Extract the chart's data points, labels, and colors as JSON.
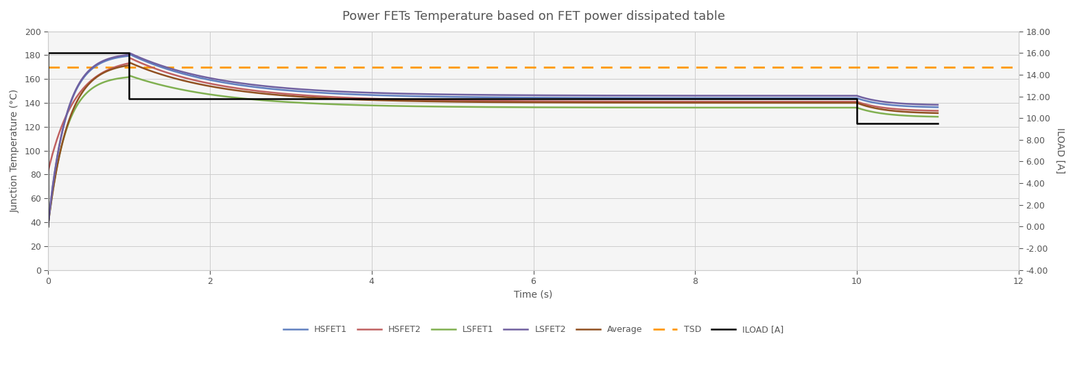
{
  "title": "Power FETs Temperature based on FET power dissipated table",
  "xlabel": "Time (s)",
  "ylabel_left": "Junction Temperature (°C)",
  "ylabel_right": "ILOAD [A]",
  "xlim": [
    0,
    12
  ],
  "ylim_left": [
    0,
    200
  ],
  "ylim_right": [
    -4.0,
    18.0
  ],
  "bg_color": "#ffffff",
  "plot_bg_color": "#f5f5f5",
  "grid_color": "#cccccc",
  "text_color": "#555555",
  "title_color": "#555555",
  "colors": {
    "HSFET1": "#6080c0",
    "HSFET2": "#c06060",
    "LSFET1": "#80b050",
    "LSFET2": "#7060a0",
    "Average": "#905020",
    "TSD": "#ff9900",
    "ILOAD": "#000000"
  },
  "tsd_value": 170,
  "phase1_end": 1.0,
  "phase2_end": 10.0,
  "total_time": 11.0,
  "iload_phase1": 16.0,
  "iload_phase2": 11.8,
  "iload_phase3": 9.5,
  "temp_init_all": 38,
  "temp_init_hsfet2": 83,
  "peaks": {
    "HSFET1": 181,
    "HSFET2": 178,
    "LSFET1": 163,
    "LSFET2": 182,
    "Average": 174
  },
  "settle": {
    "HSFET1": 144,
    "HSFET2": 141,
    "LSFET1": 136,
    "LSFET2": 146,
    "Average": 140
  },
  "end_vals": {
    "HSFET1": 136,
    "HSFET2": 133,
    "LSFET1": 128,
    "LSFET2": 138,
    "Average": 131
  }
}
